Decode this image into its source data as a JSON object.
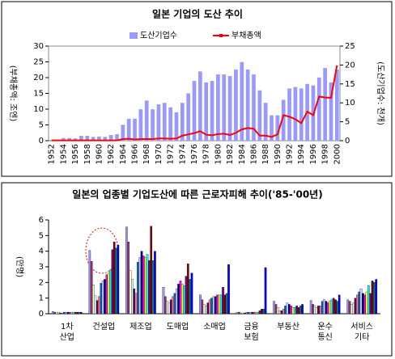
{
  "chart_data": [
    {
      "type": "combo",
      "title": "일본 기업의 도산 추이",
      "categories": [
        "1952",
        null,
        "1954",
        null,
        "1956",
        null,
        "1958",
        null,
        "1960",
        null,
        "1962",
        null,
        "1964",
        null,
        "1966",
        null,
        "1968",
        null,
        "1970",
        null,
        "1972",
        null,
        "1974",
        null,
        "1976",
        null,
        "1978",
        null,
        "1980",
        null,
        "1982",
        null,
        "1984",
        null,
        "1986",
        null,
        "1988",
        null,
        "1990",
        null,
        "1992",
        null,
        "1994",
        null,
        "1996",
        null,
        "1998",
        null,
        "2000"
      ],
      "ylabel": "(부채총액: 조엔)",
      "y2label": "(도산기업수: 천개)",
      "ylim": [
        0,
        30
      ],
      "yticks": [
        0,
        5,
        10,
        15,
        20,
        25,
        30
      ],
      "y2lim": [
        0,
        25
      ],
      "y2ticks": [
        0,
        5,
        10,
        15,
        20,
        25
      ],
      "series": [
        {
          "name": "도산기업수",
          "type": "bar",
          "axis": "y2",
          "color": "#9999ff",
          "values": [
            0.2,
            0.3,
            0.7,
            0.7,
            0.6,
            1.3,
            1.3,
            1.0,
            1.1,
            1.0,
            1.5,
            1.7,
            4.2,
            5.8,
            5.8,
            8.3,
            10.6,
            8.3,
            9.6,
            10.0,
            8.8,
            7.5,
            10.0,
            12.5,
            15.8,
            18.3,
            15.4,
            15.8,
            17.5,
            17.5,
            17.1,
            18.8,
            20.8,
            18.8,
            17.5,
            13.3,
            10.0,
            6.7,
            6.7,
            10.8,
            13.8,
            14.2,
            13.8,
            15.0,
            14.6,
            16.7,
            19.2,
            15.4,
            18.8
          ]
        },
        {
          "name": "부채총액",
          "type": "line",
          "color": "#ff0000",
          "values": [
            0.1,
            0.1,
            0.1,
            0.1,
            0.1,
            0.1,
            0.1,
            0.1,
            0.1,
            0.1,
            0.1,
            0.1,
            0.5,
            0.6,
            0.4,
            0.5,
            0.5,
            0.5,
            0.7,
            0.7,
            0.6,
            0.7,
            1.6,
            2.0,
            2.4,
            3.0,
            1.9,
            1.7,
            2.1,
            2.2,
            1.8,
            2.5,
            3.6,
            4.0,
            3.8,
            1.6,
            1.6,
            1.2,
            2.0,
            8.1,
            7.6,
            6.8,
            5.6,
            9.2,
            8.1,
            14.0,
            13.7,
            13.6,
            23.9
          ]
        }
      ]
    },
    {
      "type": "bar",
      "title": "일본의 업종별 기업도산에 따른 근로자피해 추이('85-'00년)",
      "categories": [
        "1차\n산업",
        "건설업",
        "제조업",
        "도매업",
        "소매업",
        "금융\n보험",
        "부동산",
        "운수\n통신",
        "서비스\n기타"
      ],
      "ylabel": "(만명)",
      "ylim": [
        0,
        6
      ],
      "yticks": [
        0,
        1,
        2,
        3,
        4,
        5,
        6
      ],
      "series": [
        {
          "color": "#9999ff",
          "values": [
            0.15,
            4.05,
            5.55,
            1.7,
            1.2,
            0.1,
            0.8,
            0.85,
            0.9
          ]
        },
        {
          "color": "#993366",
          "values": [
            0.1,
            3.35,
            4.6,
            1.1,
            0.9,
            0.1,
            0.6,
            0.6,
            0.8
          ]
        },
        {
          "color": "#ffffcc",
          "values": [
            0.1,
            1.85,
            2.75,
            0.8,
            0.6,
            0.05,
            0.4,
            0.5,
            0.6
          ]
        },
        {
          "color": "#ccffff",
          "values": [
            0.1,
            1.15,
            2.2,
            0.7,
            0.5,
            0.05,
            0.2,
            0.4,
            0.7
          ]
        },
        {
          "color": "#660066",
          "values": [
            0.05,
            0.85,
            1.6,
            0.9,
            0.7,
            0.05,
            0.2,
            0.5,
            1.0
          ]
        },
        {
          "color": "#ff8080",
          "values": [
            0.05,
            1.1,
            1.3,
            1.1,
            0.9,
            0.1,
            0.3,
            0.5,
            1.2
          ]
        },
        {
          "color": "#0066cc",
          "values": [
            0.1,
            1.95,
            3.3,
            1.3,
            1.0,
            0.1,
            0.5,
            0.8,
            1.4
          ]
        },
        {
          "color": "#ccccff",
          "values": [
            0.1,
            2.1,
            3.6,
            1.6,
            1.1,
            0.1,
            0.7,
            0.9,
            1.6
          ]
        },
        {
          "color": "#000080",
          "values": [
            0.1,
            2.2,
            4.0,
            1.9,
            1.1,
            0.1,
            0.6,
            0.8,
            1.3
          ]
        },
        {
          "color": "#ff00ff",
          "values": [
            0.1,
            2.5,
            3.7,
            2.1,
            1.2,
            0.1,
            0.5,
            0.7,
            1.2
          ]
        },
        {
          "color": "#ffff00",
          "values": [
            0.1,
            2.6,
            3.6,
            1.9,
            1.2,
            0.1,
            0.4,
            0.8,
            1.4
          ]
        },
        {
          "color": "#00ffff",
          "values": [
            0.1,
            2.8,
            3.8,
            1.8,
            1.2,
            0.1,
            0.4,
            0.9,
            1.8
          ]
        },
        {
          "color": "#800080",
          "values": [
            0.1,
            4.1,
            3.4,
            2.4,
            1.7,
            0.2,
            0.5,
            1.0,
            1.3
          ]
        },
        {
          "color": "#800000",
          "values": [
            0.1,
            4.6,
            5.6,
            3.2,
            1.2,
            0.3,
            0.4,
            0.9,
            2.1
          ]
        },
        {
          "color": "#008080",
          "values": [
            0.1,
            4.2,
            3.4,
            2.2,
            1.3,
            0.3,
            0.5,
            0.8,
            2.0
          ]
        },
        {
          "color": "#0000ff",
          "values": [
            0.1,
            4.4,
            4.0,
            2.6,
            3.15,
            2.95,
            0.6,
            1.2,
            2.2
          ]
        }
      ]
    }
  ]
}
